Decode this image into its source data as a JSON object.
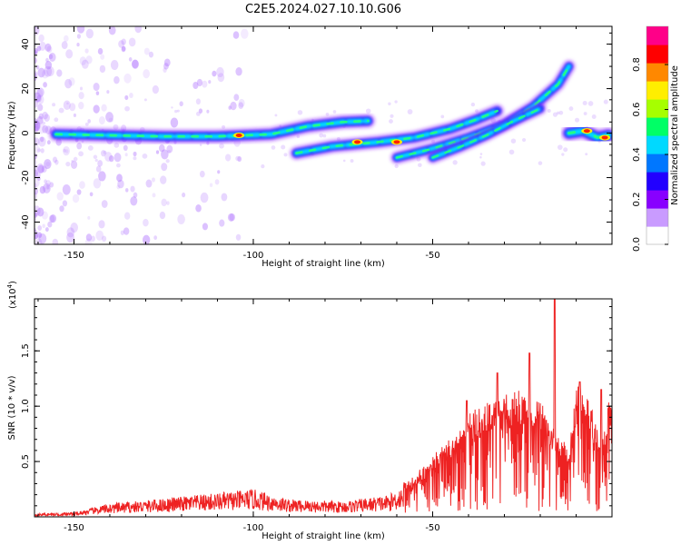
{
  "title": "C2E5.2024.027.10.10.G06",
  "chart_data": [
    {
      "type": "heatmap",
      "xlabel": "Height of straight line (km)",
      "ylabel": "Frequency (Hz)",
      "xlim": [
        -161,
        0
      ],
      "ylim": [
        -50,
        48
      ],
      "xticks": [
        "-150",
        "-100",
        "-50"
      ],
      "yticks": [
        "40",
        "20",
        "0",
        "-20",
        "-40"
      ],
      "colorbar": {
        "label": "Normalized spectral amplitude",
        "ticks": [
          "0.0",
          "0.2",
          "0.4",
          "0.6",
          "0.8"
        ],
        "range": [
          0,
          0.97
        ],
        "colors": [
          "#ffffff",
          "#c99bff",
          "#8800ff",
          "#2200ff",
          "#0077ff",
          "#00d9ff",
          "#00ff66",
          "#a6ff00",
          "#ffee00",
          "#ff8800",
          "#ff0000",
          "#ff0088"
        ]
      },
      "ridges": [
        {
          "points": [
            [
              -155,
              -0.5
            ],
            [
              -140,
              -1
            ],
            [
              -125,
              -1.5
            ],
            [
              -110,
              -1.5
            ],
            [
              -95,
              -0.5
            ],
            [
              -85,
              3
            ],
            [
              -75,
              5
            ],
            [
              -68,
              5.5
            ]
          ],
          "amplitude": 0.45
        },
        {
          "points": [
            [
              -88,
              -9
            ],
            [
              -78,
              -6
            ],
            [
              -65,
              -4
            ],
            [
              -55,
              -2
            ],
            [
              -45,
              2
            ],
            [
              -38,
              6
            ],
            [
              -32,
              10
            ]
          ],
          "amplitude": 0.4
        },
        {
          "points": [
            [
              -60,
              -11
            ],
            [
              -50,
              -7
            ],
            [
              -40,
              -2
            ],
            [
              -30,
              4
            ],
            [
              -22,
              12
            ],
            [
              -15,
              22
            ],
            [
              -12,
              30
            ]
          ],
          "amplitude": 0.35
        },
        {
          "points": [
            [
              -50,
              -11
            ],
            [
              -42,
              -6
            ],
            [
              -35,
              -1
            ],
            [
              -28,
              5
            ],
            [
              -20,
              11
            ]
          ],
          "amplitude": 0.3
        },
        {
          "points": [
            [
              -12,
              0
            ],
            [
              -8,
              1
            ],
            [
              -4,
              -2
            ],
            [
              -1,
              -1
            ]
          ],
          "amplitude": 0.6
        }
      ],
      "hotspots": [
        [
          -104,
          -1
        ],
        [
          -71,
          -4
        ],
        [
          -60,
          -4
        ],
        [
          -7,
          1
        ],
        [
          -2,
          -2
        ]
      ]
    },
    {
      "type": "line",
      "xlabel": "Height of straight line (km)",
      "ylabel": "SNR (10 * v/v)",
      "ylabel_exponent": "(x10",
      "ylabel_exponent_sup": "4",
      "ylabel_exponent_close": ")",
      "xlim": [
        -161,
        0
      ],
      "ylim": [
        0,
        1.97
      ],
      "xticks": [
        "-150",
        "-100",
        "-50"
      ],
      "yticks": [
        "0.5",
        "1.0",
        "1.5"
      ],
      "color": "#ee2222",
      "envelope": [
        {
          "x": -161,
          "y": 0.03
        },
        {
          "x": -150,
          "y": 0.04
        },
        {
          "x": -140,
          "y": 0.12
        },
        {
          "x": -130,
          "y": 0.15
        },
        {
          "x": -115,
          "y": 0.2
        },
        {
          "x": -100,
          "y": 0.25
        },
        {
          "x": -90,
          "y": 0.16
        },
        {
          "x": -75,
          "y": 0.14
        },
        {
          "x": -62,
          "y": 0.2
        },
        {
          "x": -52,
          "y": 0.45
        },
        {
          "x": -45,
          "y": 0.7
        },
        {
          "x": -38,
          "y": 0.95
        },
        {
          "x": -30,
          "y": 1.05
        },
        {
          "x": -25,
          "y": 1.1
        },
        {
          "x": -20,
          "y": 1.0
        },
        {
          "x": -15,
          "y": 0.7
        },
        {
          "x": -12,
          "y": 0.6
        },
        {
          "x": -10,
          "y": 1.15
        },
        {
          "x": -6,
          "y": 1.0
        },
        {
          "x": -3,
          "y": 0.65
        },
        {
          "x": 0,
          "y": 1.15
        }
      ],
      "peaks": [
        {
          "x": -40.5,
          "y": 1.05
        },
        {
          "x": -32,
          "y": 1.3
        },
        {
          "x": -23,
          "y": 1.48
        },
        {
          "x": -16,
          "y": 1.98
        },
        {
          "x": -9,
          "y": 1.22
        },
        {
          "x": -3,
          "y": 1.15
        }
      ]
    }
  ]
}
